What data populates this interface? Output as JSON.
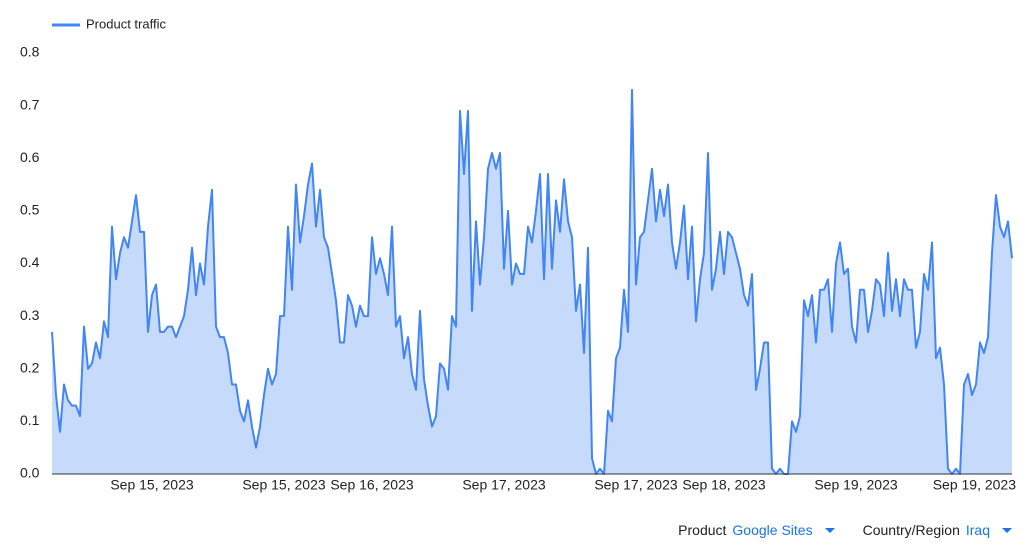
{
  "chart_data": {
    "type": "area",
    "legend": "top-left",
    "grid": false,
    "categories": [
      null,
      null,
      null,
      null,
      null,
      null,
      null,
      null,
      null,
      null,
      null,
      null,
      null,
      null,
      null,
      null,
      null,
      null,
      null,
      null,
      null,
      null,
      null,
      null,
      null,
      "Sep 15, 2023",
      null,
      null,
      null,
      null,
      null,
      null,
      null,
      null,
      null,
      null,
      null,
      null,
      null,
      null,
      null,
      null,
      null,
      null,
      null,
      null,
      null,
      null,
      null,
      null,
      null,
      null,
      null,
      null,
      null,
      null,
      null,
      null,
      "Sep 15, 2023",
      null,
      null,
      null,
      null,
      null,
      null,
      null,
      null,
      null,
      null,
      null,
      null,
      null,
      null,
      null,
      null,
      null,
      null,
      null,
      null,
      null,
      "Sep 16, 2023",
      null,
      null,
      null,
      null,
      null,
      null,
      null,
      null,
      null,
      null,
      null,
      null,
      null,
      null,
      null,
      null,
      null,
      null,
      null,
      null,
      null,
      null,
      null,
      null,
      null,
      null,
      null,
      null,
      null,
      null,
      null,
      null,
      "Sep 17, 2023",
      null,
      null,
      null,
      null,
      null,
      null,
      null,
      null,
      null,
      null,
      null,
      null,
      null,
      null,
      null,
      null,
      null,
      null,
      null,
      null,
      null,
      null,
      null,
      null,
      null,
      null,
      null,
      null,
      null,
      null,
      null,
      null,
      "Sep 17, 2023",
      null,
      null,
      null,
      null,
      null,
      null,
      null,
      null,
      null,
      null,
      null,
      null,
      null,
      null,
      null,
      null,
      null,
      null,
      null,
      null,
      null,
      "Sep 18, 2023",
      null,
      null,
      null,
      null,
      null,
      null,
      null,
      null,
      null,
      null,
      null,
      null,
      null,
      null,
      null,
      null,
      null,
      null,
      null,
      null,
      null,
      null,
      null,
      null,
      null,
      null,
      null,
      null,
      null,
      null,
      null,
      null,
      "Sep 19, 2023",
      null,
      null,
      null,
      null,
      null,
      null,
      null,
      null,
      null,
      null,
      null,
      null,
      null,
      null,
      null,
      null,
      null,
      null,
      null,
      null,
      null,
      null,
      null,
      null,
      null,
      null,
      null,
      null,
      null,
      null,
      null,
      null,
      null,
      null,
      null,
      null,
      null,
      null,
      "Sep 19, 2023"
    ],
    "series": [
      {
        "name": "Product traffic",
        "color": "#4285f4",
        "fill": "#c6dafc",
        "values": [
          0.27,
          0.15,
          0.08,
          0.17,
          0.14,
          0.13,
          0.13,
          0.11,
          0.28,
          0.2,
          0.21,
          0.25,
          0.22,
          0.29,
          0.26,
          0.47,
          0.37,
          0.42,
          0.45,
          0.43,
          0.48,
          0.53,
          0.46,
          0.46,
          0.27,
          0.34,
          0.36,
          0.27,
          0.27,
          0.28,
          0.28,
          0.26,
          0.28,
          0.3,
          0.35,
          0.43,
          0.34,
          0.4,
          0.36,
          0.47,
          0.54,
          0.28,
          0.26,
          0.26,
          0.23,
          0.17,
          0.17,
          0.12,
          0.1,
          0.14,
          0.09,
          0.05,
          0.09,
          0.15,
          0.2,
          0.17,
          0.19,
          0.3,
          0.3,
          0.47,
          0.35,
          0.55,
          0.44,
          0.49,
          0.55,
          0.59,
          0.47,
          0.54,
          0.45,
          0.43,
          0.38,
          0.33,
          0.25,
          0.25,
          0.34,
          0.32,
          0.28,
          0.32,
          0.3,
          0.3,
          0.45,
          0.38,
          0.41,
          0.38,
          0.34,
          0.47,
          0.28,
          0.3,
          0.22,
          0.26,
          0.19,
          0.16,
          0.31,
          0.18,
          0.13,
          0.09,
          0.11,
          0.21,
          0.2,
          0.16,
          0.3,
          0.28,
          0.69,
          0.57,
          0.69,
          0.31,
          0.48,
          0.36,
          0.45,
          0.58,
          0.61,
          0.58,
          0.61,
          0.39,
          0.5,
          0.36,
          0.4,
          0.38,
          0.38,
          0.47,
          0.44,
          0.5,
          0.57,
          0.37,
          0.57,
          0.39,
          0.52,
          0.46,
          0.56,
          0.48,
          0.45,
          0.31,
          0.36,
          0.23,
          0.43,
          0.03,
          0,
          0.01,
          0,
          0.12,
          0.1,
          0.22,
          0.24,
          0.35,
          0.27,
          0.73,
          0.36,
          0.45,
          0.46,
          0.52,
          0.58,
          0.48,
          0.54,
          0.49,
          0.55,
          0.44,
          0.39,
          0.44,
          0.51,
          0.37,
          0.47,
          0.29,
          0.37,
          0.42,
          0.61,
          0.35,
          0.39,
          0.46,
          0.38,
          0.46,
          0.45,
          0.42,
          0.39,
          0.34,
          0.32,
          0.38,
          0.16,
          0.2,
          0.25,
          0.25,
          0.01,
          0,
          0.01,
          0,
          0,
          0.1,
          0.08,
          0.11,
          0.33,
          0.3,
          0.34,
          0.25,
          0.35,
          0.35,
          0.37,
          0.27,
          0.4,
          0.44,
          0.38,
          0.39,
          0.28,
          0.25,
          0.35,
          0.35,
          0.27,
          0.31,
          0.37,
          0.36,
          0.3,
          0.42,
          0.31,
          0.37,
          0.3,
          0.37,
          0.35,
          0.35,
          0.24,
          0.27,
          0.38,
          0.35,
          0.44,
          0.22,
          0.24,
          0.17,
          0.01,
          0,
          0.01,
          0,
          0.17,
          0.19,
          0.15,
          0.17,
          0.25,
          0.23,
          0.26,
          0.42,
          0.53,
          0.47,
          0.45,
          0.48,
          0.41
        ]
      }
    ],
    "ylim": [
      0,
      0.8
    ],
    "yticks": [
      {
        "value": 0,
        "label": "0.0"
      },
      0.1,
      0.2,
      0.3,
      0.4,
      0.5,
      0.6,
      0.7,
      0.8
    ]
  },
  "filters": [
    {
      "label": "Product",
      "value": "Google Sites"
    },
    {
      "label": "Country/Region",
      "value": "Iraq"
    }
  ]
}
